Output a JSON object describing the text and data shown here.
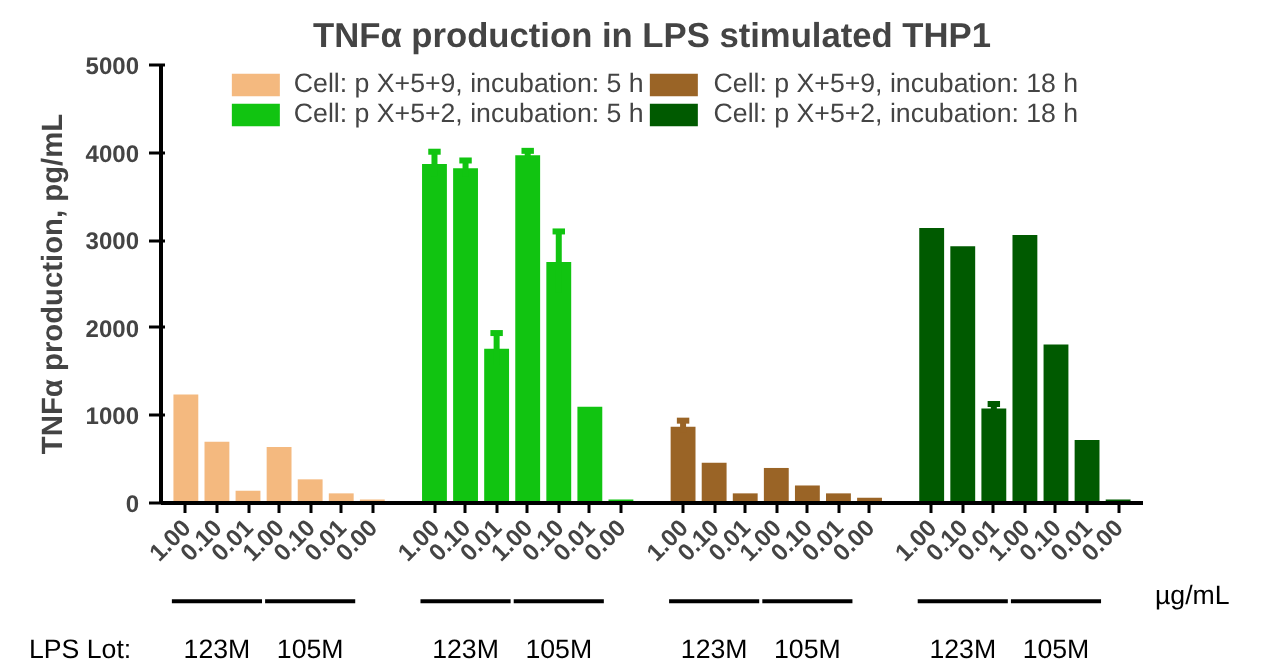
{
  "chart_data": {
    "type": "bar",
    "title": "TNFα production in LPS stimulated THP1",
    "ylabel": "TNFα production, pg/mL",
    "categories": [
      "1.00",
      "0.10",
      "0.01",
      "1.00",
      "0.10",
      "0.01",
      "0.00",
      null,
      "1.00",
      "0.10",
      "0.01",
      "1.00",
      "0.10",
      "0.01",
      "0.00",
      null,
      "1.00",
      "0.10",
      "0.01",
      "1.00",
      "0.10",
      "0.01",
      "0.00",
      null,
      "1.00",
      "0.10",
      "0.01",
      "1.00",
      "0.10",
      "0.01",
      "0.00"
    ],
    "series": [
      {
        "name": "Cell: p X+5+9, incubation: 5 h",
        "color": "#f4b97f",
        "values": [
          1240,
          700,
          140,
          640,
          270,
          110,
          40,
          null,
          null,
          null,
          null,
          null,
          null,
          null,
          null,
          null,
          null,
          null,
          null,
          null,
          null,
          null,
          null,
          null,
          null,
          null,
          null,
          null,
          null,
          null,
          null
        ]
      },
      {
        "name": "Cell: p X+5+2, incubation: 5 h",
        "color": "#11c411",
        "values": [
          null,
          null,
          null,
          null,
          null,
          null,
          null,
          null,
          3870,
          3820,
          1760,
          3970,
          2750,
          1100,
          40,
          null,
          null,
          null,
          null,
          null,
          null,
          null,
          null,
          null,
          null,
          null,
          null,
          null,
          null,
          null,
          null
        ],
        "errors": [
          null,
          null,
          null,
          null,
          null,
          null,
          null,
          null,
          140,
          90,
          180,
          50,
          350,
          null,
          null,
          null,
          null,
          null,
          null,
          null,
          null,
          null,
          null,
          null,
          null,
          null,
          null,
          null,
          null,
          null,
          null
        ]
      },
      {
        "name": "Cell: p X+5+9, incubation: 18 h",
        "color": "#9a6426",
        "values": [
          null,
          null,
          null,
          null,
          null,
          null,
          null,
          null,
          null,
          null,
          null,
          null,
          null,
          null,
          null,
          null,
          870,
          460,
          110,
          400,
          200,
          110,
          60,
          null,
          null,
          null,
          null,
          null,
          null,
          null,
          null
        ],
        "errors": [
          null,
          null,
          null,
          null,
          null,
          null,
          null,
          null,
          null,
          null,
          null,
          null,
          null,
          null,
          null,
          null,
          70,
          null,
          null,
          null,
          null,
          null,
          null,
          null,
          null,
          null,
          null,
          null,
          null,
          null,
          null
        ]
      },
      {
        "name": "Cell: p X+5+2, incubation: 18 h",
        "color": "#005a00",
        "values": [
          null,
          null,
          null,
          null,
          null,
          null,
          null,
          null,
          null,
          null,
          null,
          null,
          null,
          null,
          null,
          null,
          null,
          null,
          null,
          null,
          null,
          null,
          null,
          null,
          3140,
          2930,
          1080,
          3060,
          1810,
          720,
          40
        ],
        "errors": [
          null,
          null,
          null,
          null,
          null,
          null,
          null,
          null,
          null,
          null,
          null,
          null,
          null,
          null,
          null,
          null,
          null,
          null,
          null,
          null,
          null,
          null,
          null,
          null,
          null,
          null,
          50,
          null,
          null,
          null,
          null
        ]
      }
    ],
    "ylim": [
      0,
      5000
    ],
    "yticks": [
      0,
      1000,
      2000,
      3000,
      4000,
      5000
    ],
    "grid": false,
    "legend": "top",
    "annotations": [
      "µg/mL",
      "LPS Lot:",
      "123M",
      "105M",
      "123M",
      "105M",
      "123M",
      "105M",
      "123M",
      "105M"
    ]
  }
}
